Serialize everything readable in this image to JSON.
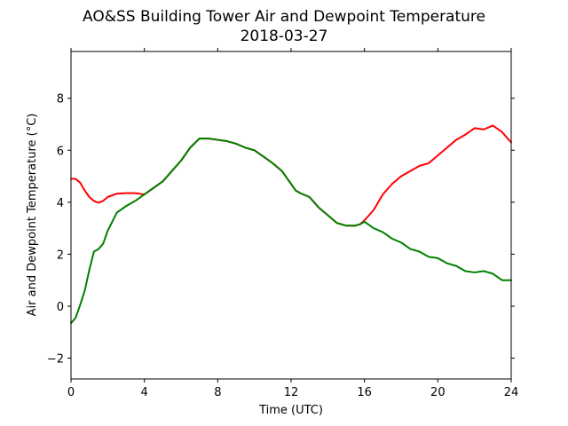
{
  "chart_data": {
    "type": "line",
    "title": "AO&SS Building Tower Air and Dewpoint Temperature",
    "subtitle": "2018-03-27",
    "xlabel": "Time (UTC)",
    "ylabel": "Air and Dewpoint Temperature (°C)",
    "xlim": [
      0,
      24
    ],
    "ylim": [
      -2.8,
      9.8
    ],
    "xticks": [
      0,
      4,
      8,
      12,
      16,
      20,
      24
    ],
    "yticks": [
      -2,
      0,
      2,
      4,
      6,
      8
    ],
    "grid": false,
    "legend": "none",
    "series": [
      {
        "color": "#ff0000",
        "x": [
          0,
          0.25,
          0.5,
          0.75,
          1.0,
          1.25,
          1.5,
          1.75,
          2.0,
          2.5,
          3.0,
          3.5,
          4.0,
          4.5,
          5.0,
          5.5,
          6.0,
          6.5,
          7.0,
          7.5,
          8.0,
          8.5,
          9.0,
          9.5,
          10.0,
          10.5,
          11.0,
          11.5,
          12.0,
          12.25,
          12.5,
          13.0,
          13.5,
          14.0,
          14.5,
          15.0,
          15.5,
          15.75,
          16.0,
          16.5,
          17.0,
          17.5,
          18.0,
          18.5,
          19.0,
          19.5,
          20.0,
          20.5,
          21.0,
          21.5,
          22.0,
          22.5,
          23.0,
          23.5,
          24.0
        ],
        "y": [
          4.9,
          4.9,
          4.75,
          4.45,
          4.2,
          4.05,
          3.98,
          4.05,
          4.2,
          4.33,
          4.35,
          4.35,
          4.3,
          4.55,
          4.8,
          5.2,
          5.6,
          6.1,
          6.45,
          6.45,
          6.4,
          6.35,
          6.25,
          6.1,
          6.0,
          5.75,
          5.5,
          5.2,
          4.7,
          4.45,
          4.35,
          4.2,
          3.8,
          3.5,
          3.2,
          3.1,
          3.1,
          3.15,
          3.3,
          3.7,
          4.3,
          4.7,
          5.0,
          5.2,
          5.4,
          5.5,
          5.8,
          6.1,
          6.4,
          6.6,
          6.85,
          6.8,
          6.95,
          6.7,
          6.3
        ]
      },
      {
        "color": "#008000",
        "x": [
          0,
          0.25,
          0.5,
          0.75,
          1.0,
          1.25,
          1.5,
          1.75,
          2.0,
          2.5,
          3.0,
          3.5,
          4.0,
          4.5,
          5.0,
          5.5,
          6.0,
          6.5,
          7.0,
          7.5,
          8.0,
          8.5,
          9.0,
          9.5,
          10.0,
          10.5,
          11.0,
          11.5,
          12.0,
          12.25,
          12.5,
          13.0,
          13.5,
          14.0,
          14.5,
          15.0,
          15.5,
          15.75,
          16.0,
          16.5,
          17.0,
          17.5,
          18.0,
          18.5,
          19.0,
          19.5,
          20.0,
          20.5,
          21.0,
          21.5,
          22.0,
          22.5,
          23.0,
          23.5,
          24.0
        ],
        "y": [
          -0.65,
          -0.45,
          0.05,
          0.6,
          1.4,
          2.1,
          2.2,
          2.4,
          2.9,
          3.6,
          3.85,
          4.05,
          4.3,
          4.55,
          4.8,
          5.2,
          5.6,
          6.1,
          6.45,
          6.45,
          6.4,
          6.35,
          6.25,
          6.1,
          6.0,
          5.75,
          5.5,
          5.2,
          4.7,
          4.45,
          4.35,
          4.2,
          3.8,
          3.5,
          3.2,
          3.1,
          3.1,
          3.15,
          3.25,
          3.0,
          2.85,
          2.6,
          2.45,
          2.2,
          2.1,
          1.9,
          1.85,
          1.65,
          1.55,
          1.35,
          1.3,
          1.35,
          1.25,
          1.0,
          1.0
        ]
      }
    ]
  }
}
